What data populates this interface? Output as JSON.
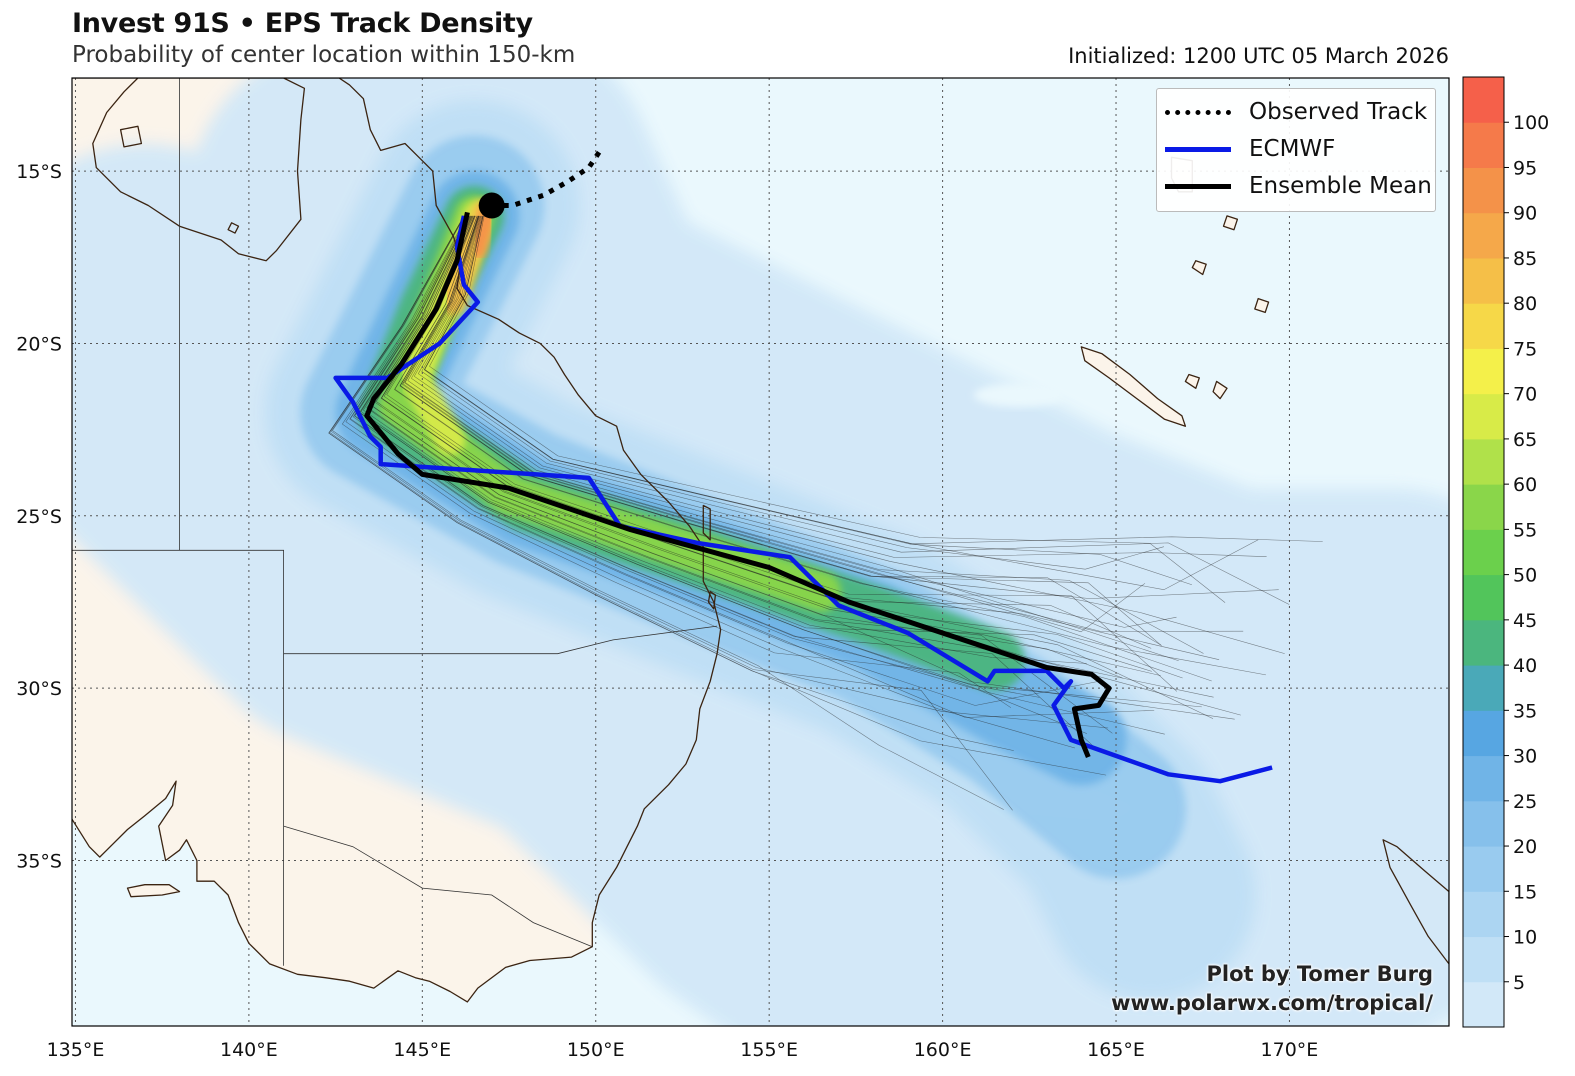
{
  "header": {
    "title": "Invest 91S • EPS Track Density",
    "subtitle": "Probability of center location within 150-km",
    "initialized": "Initialized: 1200 UTC 05 March 2026"
  },
  "map": {
    "lon_range": [
      134.9,
      174.6
    ],
    "lat_range": [
      -39.8,
      -12.3
    ],
    "lon_ticks": [
      "135°E",
      "140°E",
      "145°E",
      "150°E",
      "155°E",
      "160°E",
      "165°E",
      "170°E"
    ],
    "lat_ticks": [
      "15°S",
      "20°S",
      "25°S",
      "30°S",
      "35°S"
    ],
    "ocean_color": "#eaf8fd",
    "land_color": "#fbf4ea",
    "coast_color": "#3b2412"
  },
  "legend": {
    "items": [
      {
        "label": "Observed Track",
        "color": "#000000",
        "style": "dotted"
      },
      {
        "label": "ECMWF",
        "color": "#0a1ae6",
        "style": "solid"
      },
      {
        "label": "Ensemble Mean",
        "color": "#000000",
        "style": "solid"
      }
    ]
  },
  "colorbar": {
    "ticks": [
      "5",
      "10",
      "15",
      "20",
      "25",
      "30",
      "35",
      "40",
      "45",
      "50",
      "55",
      "60",
      "65",
      "70",
      "75",
      "80",
      "85",
      "90",
      "95",
      "100"
    ],
    "colors": [
      "#d2e8f8",
      "#bfdff5",
      "#acd5f2",
      "#99cbef",
      "#86c0eb",
      "#70b4e7",
      "#57a6e2",
      "#4aa9b8",
      "#4bb67e",
      "#52c55b",
      "#6bd04c",
      "#8ad64a",
      "#b0e14a",
      "#d8eb48",
      "#f4f04a",
      "#f6d848",
      "#f5bf48",
      "#f5a84a",
      "#f49249",
      "#f57a4a",
      "#f5604a"
    ]
  },
  "tracks": {
    "observed": [
      [
        147.0,
        -16.0
      ],
      [
        147.6,
        -16.0
      ],
      [
        148.5,
        -15.7
      ],
      [
        149.2,
        -15.3
      ],
      [
        149.8,
        -14.9
      ],
      [
        150.2,
        -14.3
      ]
    ],
    "ecmwf": [
      [
        146.2,
        -16.3
      ],
      [
        146.0,
        -17.2
      ],
      [
        146.2,
        -18.3
      ],
      [
        146.6,
        -18.8
      ],
      [
        145.5,
        -20.0
      ],
      [
        144.0,
        -21.0
      ],
      [
        142.5,
        -21.0
      ],
      [
        143.0,
        -21.7
      ],
      [
        143.5,
        -22.7
      ],
      [
        143.8,
        -23.0
      ],
      [
        143.8,
        -23.5
      ],
      [
        149.8,
        -23.9
      ],
      [
        150.7,
        -25.3
      ],
      [
        153.0,
        -25.8
      ],
      [
        155.6,
        -26.2
      ],
      [
        157.0,
        -27.6
      ],
      [
        159.0,
        -28.4
      ],
      [
        161.3,
        -29.8
      ],
      [
        161.5,
        -29.5
      ],
      [
        163.0,
        -29.5
      ],
      [
        163.5,
        -30.0
      ],
      [
        163.7,
        -29.8
      ],
      [
        163.2,
        -30.5
      ],
      [
        163.7,
        -31.5
      ],
      [
        166.5,
        -32.5
      ],
      [
        168.0,
        -32.7
      ],
      [
        169.5,
        -32.3
      ]
    ],
    "ensemble_mean": [
      [
        146.3,
        -16.2
      ],
      [
        146.0,
        -17.6
      ],
      [
        145.4,
        -19.0
      ],
      [
        144.4,
        -20.6
      ],
      [
        143.6,
        -21.6
      ],
      [
        143.4,
        -22.1
      ],
      [
        144.3,
        -23.2
      ],
      [
        145.0,
        -23.8
      ],
      [
        147.5,
        -24.2
      ],
      [
        151.0,
        -25.4
      ],
      [
        155.0,
        -26.5
      ],
      [
        157.3,
        -27.5
      ],
      [
        160.0,
        -28.4
      ],
      [
        163.0,
        -29.4
      ],
      [
        164.3,
        -29.6
      ],
      [
        164.8,
        -30.0
      ],
      [
        164.5,
        -30.5
      ],
      [
        163.8,
        -30.6
      ],
      [
        164.0,
        -31.5
      ],
      [
        164.2,
        -32.0
      ]
    ],
    "storm_center": [
      147.0,
      -16.0
    ]
  },
  "credit": {
    "line1": "Plot by Tomer Burg",
    "line2": "www.polarwx.com/tropical/"
  }
}
